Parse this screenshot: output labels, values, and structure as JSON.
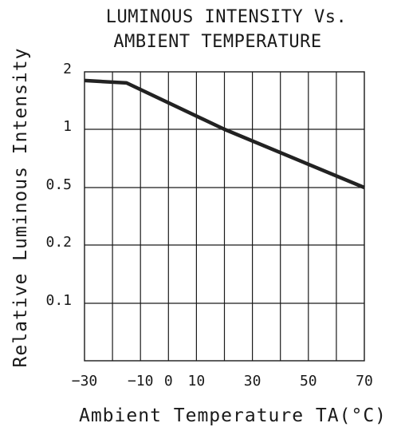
{
  "chart_data": {
    "type": "line",
    "title_line1": "LUMINOUS INTENSITY Vs.",
    "title_line2": "AMBIENT TEMPERATURE",
    "xlabel": "Ambient Temperature TA(°C)",
    "ylabel": "Relative Luminous Intensity",
    "x_tick_labels": [
      "-30",
      "-10",
      "0",
      "10",
      "30",
      "50",
      "70"
    ],
    "y_tick_labels": [
      "2",
      "1",
      "0.5",
      "0.2",
      "0.1"
    ],
    "xlim": [
      -30,
      70
    ],
    "ylim": [
      0.05,
      2
    ],
    "y_scale": "log",
    "grid": true,
    "series": [
      {
        "x": [
          -30,
          -15,
          20,
          70
        ],
        "y": [
          1.8,
          1.75,
          1.0,
          0.5
        ]
      }
    ]
  }
}
